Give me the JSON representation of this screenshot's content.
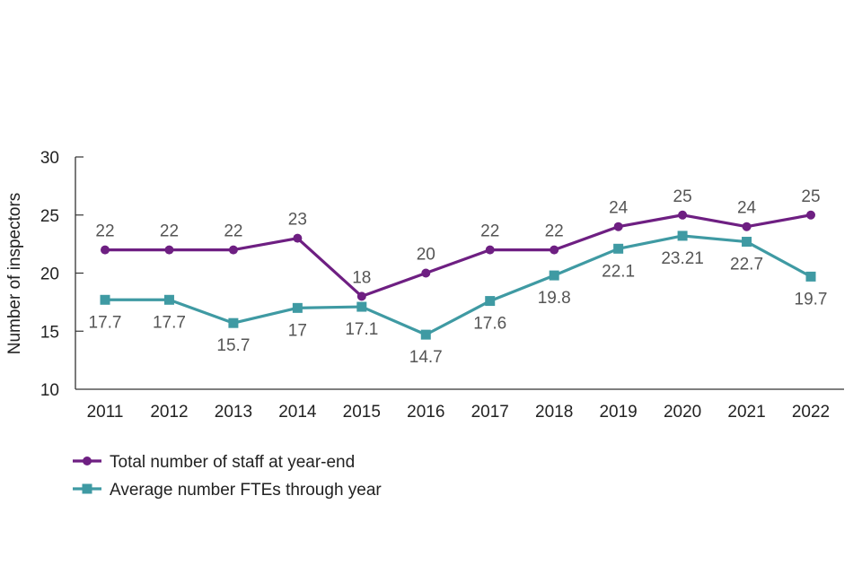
{
  "chart_data": {
    "type": "line",
    "title": "",
    "xlabel": "",
    "ylabel": "Number of inspectors",
    "ylim": [
      10,
      30
    ],
    "yticks": [
      10,
      15,
      20,
      25,
      30
    ],
    "grid": false,
    "categories": [
      "2011",
      "2012",
      "2013",
      "2014",
      "2015",
      "2016",
      "2017",
      "2018",
      "2019",
      "2020",
      "2021",
      "2022"
    ],
    "series": [
      {
        "name": "Total number of staff at year-end",
        "marker": "circle",
        "color": "#6e1f82",
        "label_position": "above",
        "values": [
          22,
          22,
          22,
          23,
          18,
          20,
          22,
          22,
          24,
          25,
          24,
          25
        ],
        "labels": [
          "22",
          "22",
          "22",
          "23",
          "18",
          "20",
          "22",
          "22",
          "24",
          "25",
          "24",
          "25"
        ]
      },
      {
        "name": "Average number FTEs through year",
        "marker": "square",
        "color": "#3f9aa3",
        "label_position": "below",
        "values": [
          17.7,
          17.7,
          15.7,
          17,
          17.1,
          14.7,
          17.6,
          19.8,
          22.1,
          23.21,
          22.7,
          19.7
        ],
        "labels": [
          "17.7",
          "17.7",
          "15.7",
          "17",
          "17.1",
          "14.7",
          "17.6",
          "19.8",
          "22.1",
          "23.21",
          "22.7",
          "19.7"
        ]
      }
    ],
    "legend": {
      "placement": "bottom-left",
      "entries": [
        "Total number of staff at year-end",
        "Average number FTEs through year"
      ]
    }
  }
}
